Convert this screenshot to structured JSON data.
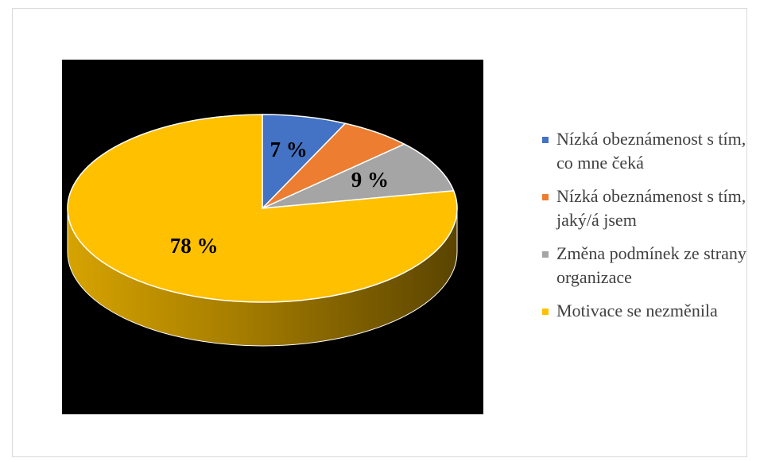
{
  "chart_data": {
    "type": "pie",
    "categories": [
      "Nízká obeznámenost s tím, co mne čeká",
      "Nízká obeznámenost s tím, jaký/á jsem",
      "Změna podmínek ze strany organizace",
      "Motivace se nezměnila"
    ],
    "values": [
      7,
      6,
      9,
      78
    ],
    "value_labels": [
      "7 %",
      null,
      "9 %",
      "78 %"
    ],
    "colors": [
      "#4472c4",
      "#ed7d31",
      "#a5a5a5",
      "#ffc000"
    ],
    "legend": "right"
  }
}
